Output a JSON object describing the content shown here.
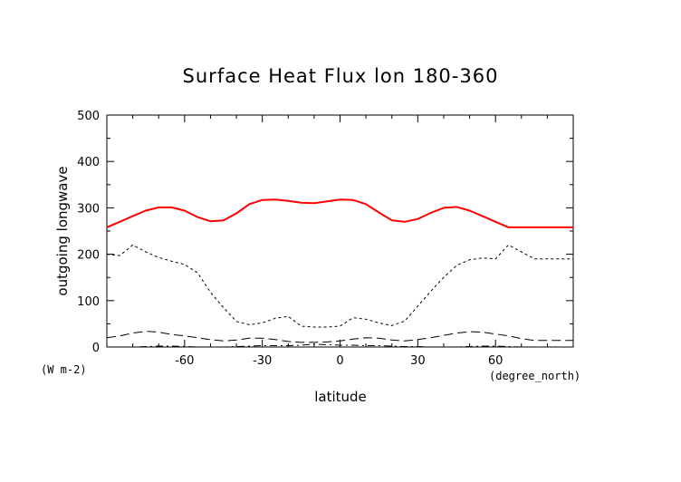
{
  "chart_data": {
    "type": "line",
    "title": "Surface Heat Flux lon 180-360",
    "xlabel": "latitude",
    "ylabel": "outgoing longwave",
    "x_units": "(degree_north)",
    "y_units": "(W m-2)",
    "xlim": [
      -90,
      90
    ],
    "ylim": [
      0,
      500
    ],
    "x_ticks": [
      -60,
      -30,
      0,
      30,
      60
    ],
    "y_ticks": [
      0,
      100,
      200,
      300,
      400,
      500
    ],
    "x_tick_labels": [
      "-60",
      "-30",
      "0",
      "30",
      "60"
    ],
    "y_tick_labels": [
      "0",
      "100",
      "200",
      "300",
      "400",
      "500"
    ],
    "grid": false,
    "series": [
      {
        "color": "#ff0000",
        "style": "solid",
        "x": [
          -90,
          -85,
          -80,
          -75,
          -70,
          -65,
          -60,
          -55,
          -50,
          -45,
          -40,
          -35,
          -30,
          -25,
          -20,
          -15,
          -10,
          -5,
          0,
          5,
          10,
          15,
          20,
          25,
          30,
          35,
          40,
          45,
          50,
          55,
          60,
          65,
          70,
          75,
          80,
          85,
          90
        ],
        "y": [
          258,
          270,
          282,
          294,
          301,
          301,
          294,
          280,
          271,
          273,
          288,
          308,
          317,
          318,
          315,
          311,
          310,
          314,
          318,
          317,
          308,
          290,
          273,
          270,
          276,
          289,
          300,
          302,
          294,
          282,
          270,
          258,
          258,
          258,
          258,
          258,
          258
        ]
      },
      {
        "color": "#000000",
        "style": "dashed",
        "x": [
          -90,
          -85,
          -80,
          -75,
          -70,
          -65,
          -60,
          -55,
          -50,
          -45,
          -40,
          -35,
          -30,
          -25,
          -20,
          -15,
          -10,
          -5,
          0,
          5,
          10,
          15,
          20,
          25,
          30,
          35,
          40,
          45,
          50,
          55,
          60,
          65,
          70,
          75,
          80,
          85,
          90
        ],
        "y": [
          200,
          197,
          220,
          205,
          193,
          185,
          178,
          160,
          118,
          85,
          55,
          48,
          52,
          62,
          66,
          45,
          43,
          43,
          45,
          63,
          60,
          52,
          46,
          56,
          88,
          120,
          150,
          176,
          188,
          192,
          190,
          220,
          205,
          190,
          190,
          190,
          190
        ]
      },
      {
        "color": "#000000",
        "style": "long-dash",
        "x": [
          -90,
          -85,
          -80,
          -75,
          -70,
          -65,
          -60,
          -55,
          -50,
          -45,
          -40,
          -35,
          -30,
          -25,
          -20,
          -15,
          -10,
          -5,
          0,
          5,
          10,
          15,
          20,
          25,
          30,
          35,
          40,
          45,
          50,
          55,
          60,
          65,
          70,
          75,
          80,
          85,
          90
        ],
        "y": [
          20,
          24,
          30,
          34,
          32,
          27,
          24,
          20,
          16,
          13,
          15,
          19,
          19,
          16,
          12,
          10,
          10,
          11,
          13,
          17,
          20,
          19,
          15,
          13,
          16,
          20,
          25,
          30,
          33,
          32,
          28,
          24,
          18,
          14,
          14,
          14,
          14
        ]
      },
      {
        "color": "#000000",
        "style": "dash-dot",
        "x": [
          -90,
          -85,
          -80,
          -75,
          -70,
          -65,
          -60,
          -55,
          -50,
          -45,
          -40,
          -35,
          -30,
          -25,
          -20,
          -15,
          -10,
          -5,
          0,
          5,
          10,
          15,
          20,
          25,
          30,
          35,
          40,
          45,
          50,
          55,
          60,
          65,
          70,
          75,
          80,
          85,
          90
        ],
        "y": [
          0,
          0,
          0,
          1,
          2,
          2,
          1,
          0,
          0,
          0,
          1,
          2,
          3,
          3,
          3,
          4,
          6,
          5,
          4,
          4,
          3,
          3,
          2,
          1,
          1,
          0,
          0,
          0,
          1,
          2,
          2,
          1,
          0,
          0,
          0,
          0,
          0
        ]
      }
    ]
  }
}
